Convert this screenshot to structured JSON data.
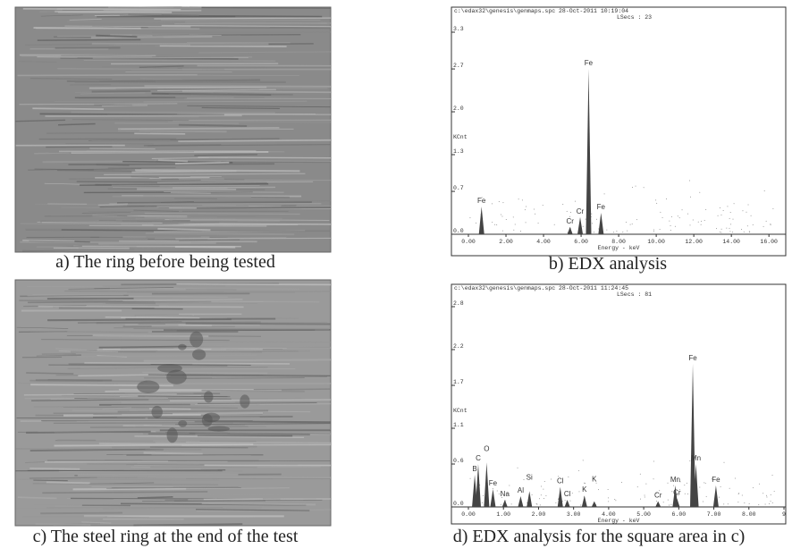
{
  "figure": {
    "panels": [
      {
        "type": "image",
        "caption": "a) The ring before being tested"
      },
      {
        "type": "spectrum",
        "caption": "b) EDX analysis",
        "header": [
          "c:\\edax32\\genesis\\genmaps.spc  28-Oct-2011 10:19:04",
          "LSecs : 23"
        ],
        "ylabel": "KCnt",
        "xlabel": "Energy - keV",
        "xlim": [
          0,
          16.8
        ],
        "ylim": [
          0,
          3.3
        ],
        "yticks": [
          {
            "value": 0,
            "label": "0.0"
          },
          0.7,
          1.3,
          {
            "value": 2,
            "label": "2.0"
          },
          2.7,
          3.3
        ],
        "xticks": [
          {
            "value": 0,
            "label": "0.00"
          },
          {
            "value": 2,
            "label": "2.00"
          },
          {
            "value": 4,
            "label": "4.00"
          },
          {
            "value": 6,
            "label": "6.00"
          },
          {
            "value": 8,
            "label": "8.00"
          },
          {
            "value": 10,
            "label": "10.00"
          },
          {
            "value": 12,
            "label": "12.00"
          },
          {
            "value": 14,
            "label": "14.00"
          },
          {
            "value": 16,
            "label": "16.00"
          }
        ],
        "peaks": [
          {
            "label": "Fe",
            "energy": 0.7,
            "height": 0.45
          },
          {
            "label": "Cr",
            "energy": 5.41,
            "height": 0.12
          },
          {
            "label": "Cr",
            "energy": 5.95,
            "height": 0.28
          },
          {
            "label": "Fe",
            "energy": 6.4,
            "height": 2.7
          },
          {
            "label": "Fe",
            "energy": 7.06,
            "height": 0.35
          }
        ]
      },
      {
        "type": "image",
        "caption": "c) The steel ring at the end of the test"
      },
      {
        "type": "spectrum",
        "caption": "d) EDX analysis for the square area in c)",
        "header": [
          "c:\\edax32\\genesis\\genmaps.spc  28-Oct-2011 11:24:45",
          "LSecs : 81"
        ],
        "ylabel": "KCnt",
        "xlabel": "Energy - keV",
        "xlim": [
          0,
          9.0
        ],
        "ylim": [
          0,
          2.8
        ],
        "yticks": [
          {
            "value": 0,
            "label": "0.0"
          },
          0.6,
          1.1,
          1.7,
          2.2,
          2.8
        ],
        "xticks": [
          {
            "value": 0,
            "label": "0.00"
          },
          {
            "value": 1,
            "label": "1.00"
          },
          {
            "value": 2,
            "label": "2.00"
          },
          {
            "value": 3,
            "label": "3.00"
          },
          {
            "value": 4,
            "label": "4.00"
          },
          {
            "value": 5,
            "label": "5.00"
          },
          {
            "value": 6,
            "label": "6.00"
          },
          {
            "value": 7,
            "label": "7.00"
          },
          {
            "value": 8,
            "label": "8.00"
          },
          9
        ],
        "peaks": [
          {
            "label": "B",
            "energy": 0.18,
            "height": 0.45
          },
          {
            "label": "C",
            "energy": 0.28,
            "height": 0.6
          },
          {
            "label": "O",
            "energy": 0.52,
            "height": 0.62
          },
          {
            "label": "Fe",
            "energy": 0.7,
            "height": 0.25
          },
          {
            "label": "Na",
            "energy": 1.04,
            "height": 0.1
          },
          {
            "label": "Al",
            "energy": 1.49,
            "height": 0.15
          },
          {
            "label": "Si",
            "energy": 1.74,
            "height": 0.22
          },
          {
            "label": "Cl",
            "energy": 2.62,
            "height": 0.28
          },
          {
            "label": "Cl",
            "energy": 2.82,
            "height": 0.1
          },
          {
            "label": "K",
            "energy": 3.31,
            "height": 0.16
          },
          {
            "label": "K",
            "energy": 3.59,
            "height": 0.08
          },
          {
            "label": "Cr",
            "energy": 5.41,
            "height": 0.08
          },
          {
            "label": "Cr",
            "energy": 5.95,
            "height": 0.12
          },
          {
            "label": "Mn",
            "energy": 5.9,
            "height": 0.3
          },
          {
            "label": "Fe",
            "energy": 6.4,
            "height": 2.0
          },
          {
            "label": "Mn",
            "energy": 6.49,
            "height": 0.6
          },
          {
            "label": "Fe",
            "energy": 7.06,
            "height": 0.3
          }
        ]
      }
    ]
  }
}
